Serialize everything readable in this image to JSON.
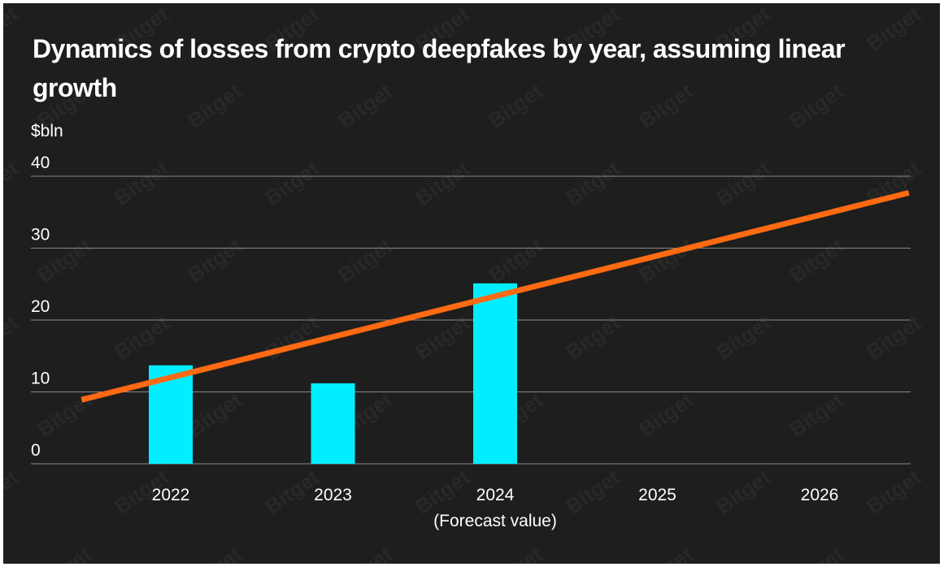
{
  "title": "Dynamics of losses from crypto deepfakes by year, assuming linear growth",
  "watermark": "Bitget",
  "colors": {
    "background": "#1e1e1e",
    "bar": "#00eeff",
    "trend": "#ff6a13",
    "grid": "#8a8a8a",
    "text": "#ffffff"
  },
  "chart_data": {
    "type": "bar",
    "ylabel": "$bln",
    "categories": [
      "2022",
      "2023",
      "2024",
      "2025",
      "2026"
    ],
    "category_note": {
      "category": "2024",
      "text": "(Forecast value)"
    },
    "yticks": [
      0,
      10,
      20,
      30,
      40
    ],
    "ylim": [
      0,
      40
    ],
    "grid": true,
    "series": [
      {
        "type": "bar",
        "values": [
          13.7,
          11.2,
          25.1,
          null,
          null
        ]
      },
      {
        "type": "line",
        "x": [
          -0.55,
          4.55
        ],
        "values": [
          8.9,
          37.7
        ]
      }
    ]
  }
}
